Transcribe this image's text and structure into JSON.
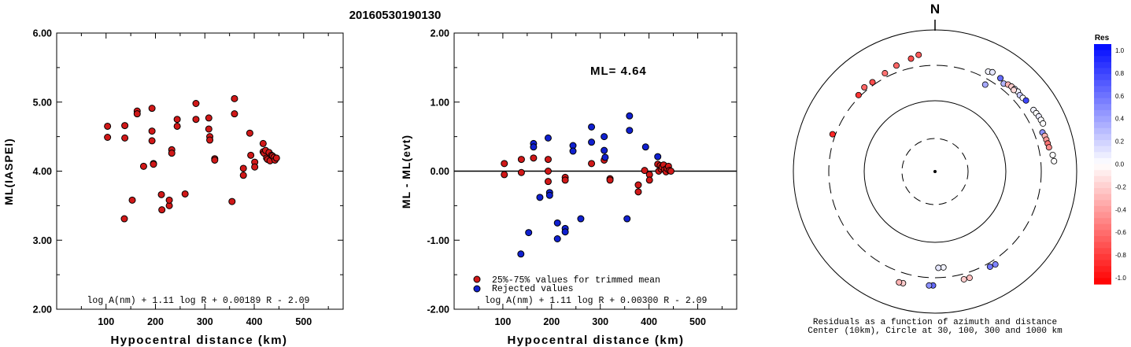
{
  "title": "20160530190130",
  "chart_data": [
    {
      "type": "scatter",
      "id": "left",
      "xlabel": "Hypocentral distance (km)",
      "ylabel": "ML(IASPEI)",
      "xlim": [
        0,
        580
      ],
      "ylim": [
        2.0,
        6.0
      ],
      "xticks": [
        "100",
        "200",
        "300",
        "400",
        "500"
      ],
      "yticks": [
        "2.00",
        "3.00",
        "4.00",
        "5.00",
        "6.00"
      ],
      "formula": "log A(nm) + 1.11 log R + 0.00189 R - 2.09",
      "grid": false,
      "points": [
        [
          103,
          4.65
        ],
        [
          103,
          4.49
        ],
        [
          138,
          4.66
        ],
        [
          138,
          4.48
        ],
        [
          137,
          3.31
        ],
        [
          153,
          3.58
        ],
        [
          163,
          4.87
        ],
        [
          163,
          4.83
        ],
        [
          176,
          4.07
        ],
        [
          193,
          4.91
        ],
        [
          193,
          4.58
        ],
        [
          193,
          4.44
        ],
        [
          196,
          4.11
        ],
        [
          196,
          4.1
        ],
        [
          212,
          3.66
        ],
        [
          213,
          3.44
        ],
        [
          228,
          3.5
        ],
        [
          228,
          3.58
        ],
        [
          233,
          4.31
        ],
        [
          233,
          4.26
        ],
        [
          244,
          4.75
        ],
        [
          244,
          4.65
        ],
        [
          260,
          3.67
        ],
        [
          282,
          4.98
        ],
        [
          282,
          4.75
        ],
        [
          308,
          4.77
        ],
        [
          308,
          4.61
        ],
        [
          310,
          4.5
        ],
        [
          310,
          4.45
        ],
        [
          320,
          4.18
        ],
        [
          320,
          4.16
        ],
        [
          355,
          3.56
        ],
        [
          360,
          5.05
        ],
        [
          360,
          4.83
        ],
        [
          378,
          4.04
        ],
        [
          378,
          3.94
        ],
        [
          391,
          4.55
        ],
        [
          393,
          4.23
        ],
        [
          401,
          4.13
        ],
        [
          401,
          4.06
        ],
        [
          418,
          4.4
        ],
        [
          418,
          4.28
        ],
        [
          420,
          4.26
        ],
        [
          423,
          4.3
        ],
        [
          425,
          4.19
        ],
        [
          427,
          4.17
        ],
        [
          430,
          4.27
        ],
        [
          432,
          4.15
        ],
        [
          435,
          4.23
        ],
        [
          437,
          4.22
        ],
        [
          440,
          4.2
        ],
        [
          442,
          4.16
        ],
        [
          445,
          4.19
        ]
      ]
    },
    {
      "type": "scatter",
      "id": "middle",
      "xlabel": "Hypocentral distance (km)",
      "ylabel": "ML - ML(evt)",
      "xlim": [
        0,
        580
      ],
      "ylim": [
        -2.0,
        2.0
      ],
      "xticks": [
        "100",
        "200",
        "300",
        "400",
        "500"
      ],
      "yticks": [
        "-2.00",
        "-1.00",
        "0.00",
        "1.00",
        "2.00"
      ],
      "annotation": "ML= 4.64",
      "formula": "log A(nm) + 1.11 log R + 0.00300 R - 2.09",
      "legend": [
        {
          "label": "25%-75% values for trimmed mean",
          "color": "#d01818"
        },
        {
          "label": "Rejected values",
          "color": "#1020d0"
        }
      ],
      "legend_position": "bottom-left",
      "series": [
        {
          "name": "25%-75% values for trimmed mean",
          "color": "#d01818",
          "points": [
            [
              103,
              0.11
            ],
            [
              103,
              -0.05
            ],
            [
              138,
              0.17
            ],
            [
              138,
              -0.02
            ],
            [
              163,
              0.19
            ],
            [
              193,
              0.17
            ],
            [
              193,
              0.0
            ],
            [
              193,
              -0.15
            ],
            [
              228,
              -0.09
            ],
            [
              228,
              -0.13
            ],
            [
              282,
              0.11
            ],
            [
              308,
              0.16
            ],
            [
              320,
              -0.11
            ],
            [
              320,
              -0.13
            ],
            [
              378,
              -0.2
            ],
            [
              378,
              -0.3
            ],
            [
              391,
              0.01
            ],
            [
              401,
              -0.05
            ],
            [
              401,
              -0.13
            ],
            [
              418,
              0.1
            ],
            [
              420,
              0.0
            ],
            [
              423,
              0.08
            ],
            [
              425,
              0.03
            ],
            [
              427,
              0.06
            ],
            [
              430,
              0.09
            ],
            [
              432,
              0.02
            ],
            [
              435,
              -0.01
            ],
            [
              437,
              0.04
            ],
            [
              440,
              0.07
            ],
            [
              442,
              0.01
            ],
            [
              445,
              0.0
            ]
          ]
        },
        {
          "name": "Rejected values",
          "color": "#1020d0",
          "points": [
            [
              137,
              -1.2
            ],
            [
              153,
              -0.89
            ],
            [
              163,
              0.4
            ],
            [
              163,
              0.35
            ],
            [
              176,
              -0.38
            ],
            [
              193,
              0.48
            ],
            [
              196,
              -0.31
            ],
            [
              196,
              -0.35
            ],
            [
              212,
              -0.75
            ],
            [
              212,
              -0.98
            ],
            [
              228,
              -0.83
            ],
            [
              228,
              -0.88
            ],
            [
              244,
              0.37
            ],
            [
              244,
              0.29
            ],
            [
              260,
              -0.69
            ],
            [
              282,
              0.64
            ],
            [
              282,
              0.42
            ],
            [
              308,
              0.5
            ],
            [
              308,
              0.3
            ],
            [
              310,
              0.2
            ],
            [
              355,
              -0.69
            ],
            [
              360,
              0.8
            ],
            [
              360,
              0.59
            ],
            [
              393,
              0.35
            ],
            [
              418,
              0.21
            ]
          ]
        }
      ]
    },
    {
      "type": "scatter",
      "id": "polar",
      "projection": "azimuth-distance",
      "north_label": "N",
      "caption_line1": "Residuals as a function of azimuth and distance",
      "caption_line2": "Center (10km), Circle at 30, 100, 300 and 1000 km",
      "colorbar": {
        "title": "Res",
        "ticks": [
          "1.0",
          "0.8",
          "0.6",
          "0.4",
          "0.2",
          "0.0",
          "-0.2",
          "-0.4",
          "-0.6",
          "-0.8",
          "-1.0"
        ],
        "min": -1.0,
        "max": 1.0
      },
      "points": [
        {
          "az": 315,
          "dist": 320,
          "res": -0.8
        },
        {
          "az": 320,
          "dist": 340,
          "res": -0.6
        },
        {
          "az": 325,
          "dist": 330,
          "res": -0.7
        },
        {
          "az": 333,
          "dist": 345,
          "res": -0.55
        },
        {
          "az": 340,
          "dist": 375,
          "res": -0.6
        },
        {
          "az": 348,
          "dist": 410,
          "res": -0.7
        },
        {
          "az": 352,
          "dist": 445,
          "res": -0.65
        },
        {
          "az": 290,
          "dist": 330,
          "res": -0.85
        },
        {
          "az": 28,
          "dist": 380,
          "res": 0.05
        },
        {
          "az": 30,
          "dist": 400,
          "res": 0.1
        },
        {
          "az": 35,
          "dist": 390,
          "res": 0.6
        },
        {
          "az": 38,
          "dist": 360,
          "res": 0.3
        },
        {
          "az": 40,
          "dist": 385,
          "res": -0.3
        },
        {
          "az": 42,
          "dist": 395,
          "res": -0.2
        },
        {
          "az": 44,
          "dist": 400,
          "res": 0.1
        },
        {
          "az": 46,
          "dist": 405,
          "res": 0.05
        },
        {
          "az": 44,
          "dist": 382,
          "res": -0.15
        },
        {
          "az": 48,
          "dist": 392,
          "res": 0.2
        },
        {
          "az": 50,
          "dist": 398,
          "res": 0.0
        },
        {
          "az": 52,
          "dist": 410,
          "res": 0.75
        },
        {
          "az": 30,
          "dist": 250,
          "res": 0.35
        },
        {
          "az": 58,
          "dist": 420,
          "res": 0.05
        },
        {
          "az": 60,
          "dist": 430,
          "res": 0.0
        },
        {
          "az": 62,
          "dist": 440,
          "res": 0.08
        },
        {
          "az": 64,
          "dist": 445,
          "res": 0.0
        },
        {
          "az": 66,
          "dist": 450,
          "res": 0.0
        },
        {
          "az": 70,
          "dist": 395,
          "res": 0.45
        },
        {
          "az": 72,
          "dist": 410,
          "res": -0.3
        },
        {
          "az": 74,
          "dist": 415,
          "res": -0.4
        },
        {
          "az": 76,
          "dist": 420,
          "res": -0.55
        },
        {
          "az": 78,
          "dist": 425,
          "res": -0.45
        },
        {
          "az": 82,
          "dist": 460,
          "res": 0.0
        },
        {
          "az": 85,
          "dist": 470,
          "res": 0.0
        },
        {
          "az": 175,
          "dist": 220,
          "res": 0.05
        },
        {
          "az": 178,
          "dist": 221,
          "res": 0.1
        },
        {
          "az": 150,
          "dist": 340,
          "res": 0.55
        },
        {
          "az": 147,
          "dist": 350,
          "res": 0.5
        },
        {
          "az": 165,
          "dist": 360,
          "res": -0.2
        },
        {
          "az": 162,
          "dist": 362,
          "res": -0.25
        },
        {
          "az": 181,
          "dist": 390,
          "res": 0.6
        },
        {
          "az": 183,
          "dist": 392,
          "res": 0.45
        },
        {
          "az": 196,
          "dist": 420,
          "res": -0.2
        },
        {
          "az": 198,
          "dist": 425,
          "res": -0.3
        }
      ]
    }
  ]
}
